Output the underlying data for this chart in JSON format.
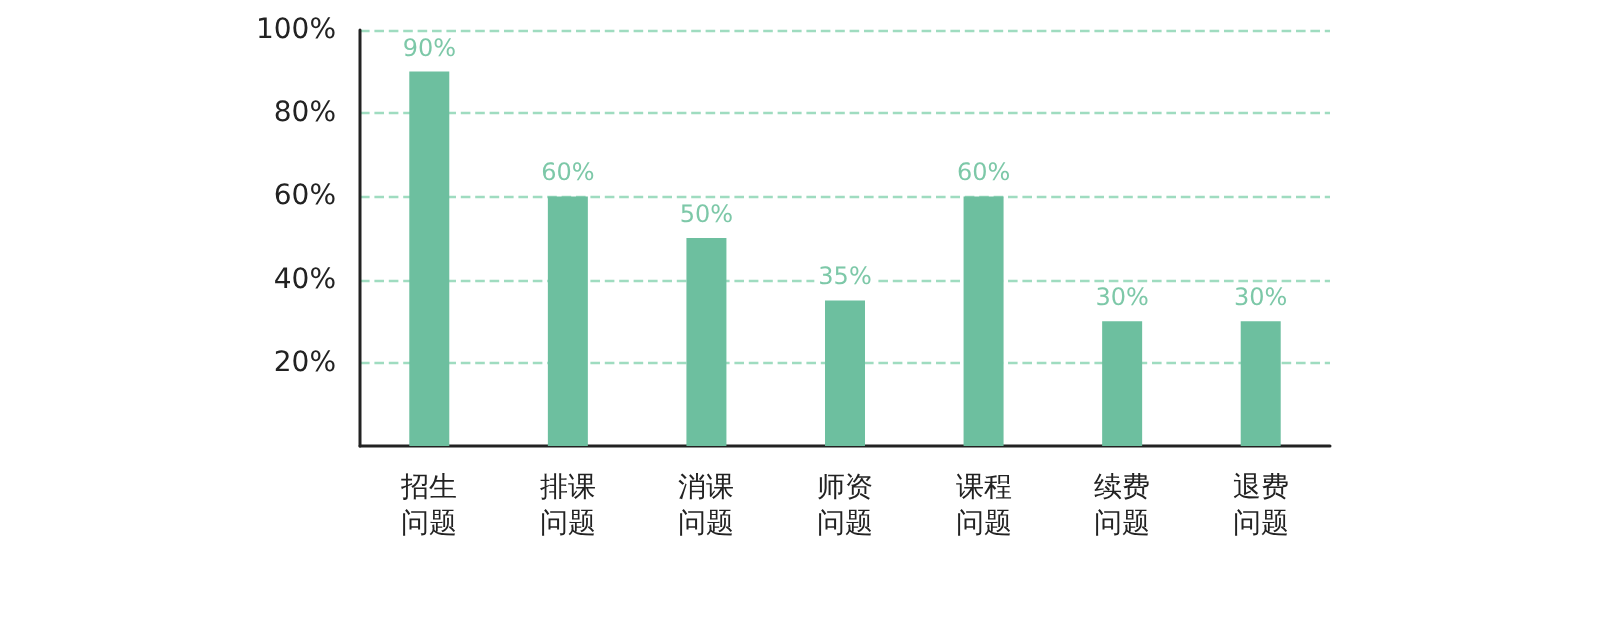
{
  "chart_data": {
    "type": "bar",
    "categories": [
      "招生问题",
      "排课问题",
      "消课问题",
      "师资问题",
      "课程问题",
      "续费问题",
      "退费问题"
    ],
    "values": [
      90,
      60,
      50,
      35,
      60,
      30,
      30
    ],
    "value_labels": [
      "90%",
      "60%",
      "50%",
      "35%",
      "60%",
      "30%",
      "30%"
    ],
    "color": "#6dbf9f",
    "ylim": [
      0,
      100
    ],
    "yticks": [
      {
        "value": 20,
        "label": "20%"
      },
      {
        "value": 40,
        "label": "40%"
      },
      {
        "value": 60,
        "label": "60%"
      },
      {
        "value": 80,
        "label": "80%"
      },
      {
        "value": 100,
        "label": "100%"
      }
    ],
    "grid": "y"
  }
}
